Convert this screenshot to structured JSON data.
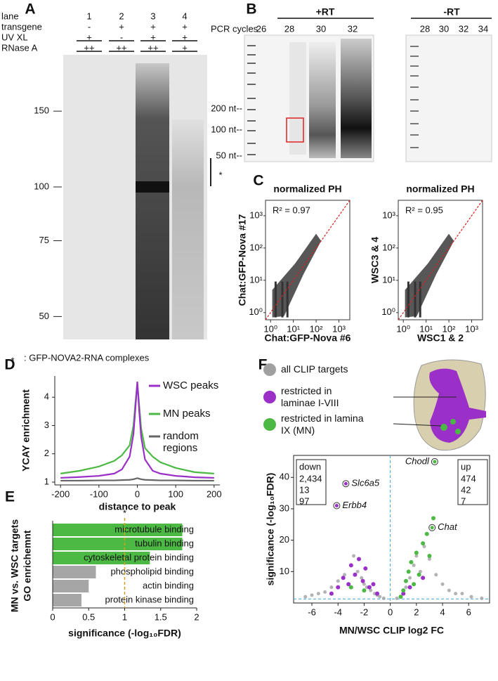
{
  "panel_a": {
    "letter": "A",
    "row_labels": [
      "lane",
      "transgene",
      "UV XL",
      "RNase A"
    ],
    "lanes": [
      [
        "1",
        "-",
        "+",
        "++"
      ],
      [
        "2",
        "+",
        "-",
        "++"
      ],
      [
        "3",
        "+",
        "+",
        "++"
      ],
      [
        "4",
        "+",
        "+",
        "+"
      ]
    ],
    "markers": [
      150,
      100,
      75,
      50
    ],
    "bracket_mark": "*",
    "footnote_star": "*",
    "footnote": ": GFP-NOVA2-RNA complexes"
  },
  "panel_b": {
    "letter": "B",
    "plus_rt": "+RT",
    "minus_rt": "-RT",
    "pcr_label": "PCR cycles",
    "plus_cycles": [
      26,
      28,
      30,
      32
    ],
    "minus_cycles": [
      28,
      30,
      32,
      34
    ],
    "size_markers": [
      "200 nt--",
      "100 nt--",
      "50 nt--"
    ]
  },
  "panel_c": {
    "letter": "C",
    "lim": [
      0.6,
      3000
    ],
    "ticks": [
      {
        "value": 1,
        "label": "10⁰"
      },
      {
        "value": 10,
        "label": "10¹"
      },
      {
        "value": 100,
        "label": "10²"
      },
      {
        "value": 1000,
        "label": "10³"
      }
    ],
    "plots": [
      {
        "title": "normalized PH",
        "r2": "R² = 0.97",
        "xlabel": "Chat:GFP-Nova #6",
        "ylabel": "Chat:GFP-Nova #17"
      },
      {
        "title": "normalized PH",
        "r2": "R² = 0.95",
        "xlabel": "WSC1 & 2",
        "ylabel": "WSC3 & 4"
      }
    ]
  },
  "chart_data": [
    {
      "type": "line",
      "letter": "D",
      "xlabel": "distance to peak",
      "ylabel": "YCAY enrichment",
      "x": [
        -200,
        -150,
        -100,
        -60,
        -40,
        -20,
        -10,
        -5,
        0,
        5,
        10,
        20,
        40,
        60,
        100,
        150,
        200
      ],
      "series": [
        {
          "name": "WSC peaks",
          "color": "#9b30c8",
          "values": [
            1.15,
            1.18,
            1.22,
            1.3,
            1.45,
            1.9,
            2.7,
            3.6,
            4.55,
            3.5,
            2.6,
            1.8,
            1.4,
            1.3,
            1.22,
            1.17,
            1.15
          ]
        },
        {
          "name": "MN peaks",
          "color": "#4cb944",
          "values": [
            1.3,
            1.4,
            1.55,
            1.75,
            1.95,
            2.3,
            3.0,
            3.8,
            4.5,
            3.7,
            2.9,
            2.2,
            1.9,
            1.7,
            1.5,
            1.35,
            1.3
          ]
        },
        {
          "name": "random regions",
          "color": "#666666",
          "values": [
            1.05,
            1.05,
            1.06,
            1.06,
            1.07,
            1.08,
            1.1,
            1.12,
            1.14,
            1.12,
            1.1,
            1.08,
            1.07,
            1.06,
            1.06,
            1.05,
            1.05
          ]
        }
      ],
      "xlim": [
        -215,
        215
      ],
      "xticks": [
        -200,
        -100,
        0,
        100,
        200
      ],
      "ylim": [
        0.9,
        4.75
      ],
      "yticks": [
        1,
        2,
        3,
        4
      ]
    },
    {
      "type": "bar",
      "letter": "E",
      "xlabel": "significance (-log₁₀FDR)",
      "ylabel": [
        "MN vs. WSC targets",
        "GO enrichemnt"
      ],
      "categories": [
        "microtubule binding",
        "tubulin binding",
        "cytoskeletal protein binding",
        "phospholipid binding",
        "actin binding",
        "protein kinase binding"
      ],
      "values": [
        1.8,
        1.8,
        1.35,
        0.6,
        0.5,
        0.4
      ],
      "colors": [
        "#4cb944",
        "#4cb944",
        "#4cb944",
        "#a6a6a6",
        "#a6a6a6",
        "#a6a6a6"
      ],
      "xlim": [
        0,
        2
      ],
      "xticks": [
        0,
        0.5,
        1,
        1.5,
        2
      ],
      "threshold": 1,
      "threshold_label": "*"
    },
    {
      "type": "scatter",
      "letter": "F",
      "xlabel": "MN/WSC CLIP log2 FC",
      "ylabel": "significance (-log₁₀FDR)",
      "xlim": [
        -7.4,
        7.6
      ],
      "xticks": [
        -6,
        -4,
        -2,
        0,
        2,
        4,
        6
      ],
      "ylim": [
        0,
        47
      ],
      "yticks": [
        10,
        20,
        30,
        40
      ],
      "cutoffs": {
        "x": 0,
        "y": 1.3
      },
      "series": [
        {
          "name": "all CLIP targets",
          "color": "#a0a0a0",
          "x": [
            -6.5,
            -6,
            -5.5,
            -5,
            -4.5,
            -4,
            -3.5,
            -3,
            -2.8,
            -2.5,
            -2.2,
            -2,
            -1.8,
            -1.5,
            -1.2,
            -1,
            -0.8,
            -0.5,
            0.5,
            0.8,
            1,
            1.2,
            1.5,
            1.8,
            2,
            2.3,
            2.6,
            3,
            3.5,
            4,
            4.5,
            5,
            5.5,
            6.2,
            7
          ],
          "y": [
            2,
            2.5,
            3,
            3.5,
            5,
            7,
            9,
            12,
            15,
            10,
            8,
            6,
            5,
            4,
            3,
            2.5,
            2,
            1.5,
            1.5,
            2,
            3,
            5,
            8,
            12,
            15,
            10,
            18,
            14,
            9,
            6,
            4,
            3,
            3,
            2,
            1.5
          ]
        },
        {
          "name": "restricted in laminae I-VIII",
          "color": "#9b30c8",
          "x": [
            -4.5,
            -4,
            -3.6,
            -3.2,
            -3,
            -2.7,
            -2.4,
            -2.1,
            -1.9,
            -1.6,
            -1.3,
            -1,
            1,
            1.5,
            2.5
          ],
          "y": [
            3,
            5,
            8,
            6,
            12,
            9,
            14,
            7,
            11,
            5,
            6,
            3,
            3,
            5,
            8
          ]
        },
        {
          "name": "restricted in lamina IX (MN)",
          "color": "#4cb944",
          "x": [
            0.8,
            1,
            1.2,
            1.4,
            1.6,
            1.8,
            2,
            2.2,
            2.5,
            2.8,
            3,
            3.3,
            -2,
            -3
          ],
          "y": [
            2,
            4,
            7,
            10,
            13,
            6,
            16,
            9,
            19,
            22,
            15,
            27,
            4,
            5
          ]
        }
      ],
      "labeled_genes": [
        {
          "name": "Chodl",
          "x": 3.4,
          "y": 45,
          "color": "#4cb944"
        },
        {
          "name": "Slc6a5",
          "x": -3.4,
          "y": 38,
          "color": "#9b30c8"
        },
        {
          "name": "Erbb4",
          "x": -4.1,
          "y": 31,
          "color": "#9b30c8"
        },
        {
          "name": "Chat",
          "x": 3.2,
          "y": 24,
          "color": "#4cb944"
        }
      ],
      "down_box": {
        "label": "down",
        "counts": [
          "2,434",
          "13",
          "97"
        ]
      },
      "up_box": {
        "label": "up",
        "counts": [
          "474",
          "42",
          "7"
        ]
      }
    }
  ]
}
